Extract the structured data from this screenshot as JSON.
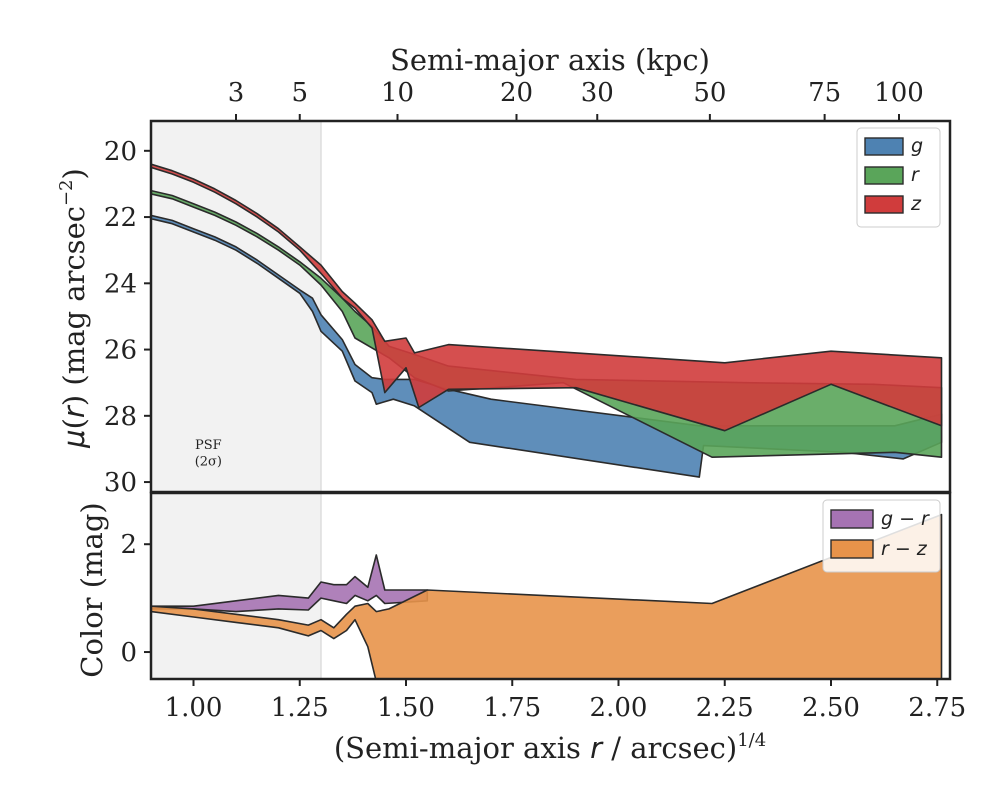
{
  "chart_data": [
    {
      "type": "area",
      "panel": "surface-brightness",
      "xlabel": "(Semi-major axis r / arcsec)1/4",
      "ylabel": "μ(r) (mag arcsec−2)",
      "top_axis_label": "Semi-major axis (kpc)",
      "top_axis_ticks": [
        {
          "kpc": 3,
          "x": 1.1
        },
        {
          "kpc": 5,
          "x": 1.25
        },
        {
          "kpc": 10,
          "x": 1.48
        },
        {
          "kpc": 20,
          "x": 1.76
        },
        {
          "kpc": 30,
          "x": 1.95
        },
        {
          "kpc": 50,
          "x": 2.215
        },
        {
          "kpc": 75,
          "x": 2.485
        },
        {
          "kpc": 100,
          "x": 2.66
        }
      ],
      "xlim": [
        0.9,
        2.78
      ],
      "ylim": [
        30.3,
        19.1
      ],
      "y_inverted": true,
      "xticks": [
        1.0,
        1.25,
        1.5,
        1.75,
        2.0,
        2.25,
        2.5,
        2.75
      ],
      "xtick_labels": [
        "1.00",
        "1.25",
        "1.50",
        "1.75",
        "2.00",
        "2.25",
        "2.50",
        "2.75"
      ],
      "yticks": [
        20,
        22,
        24,
        26,
        28,
        30
      ],
      "ytick_labels": [
        "20",
        "22",
        "24",
        "26",
        "28",
        "30"
      ],
      "legend_position": "top-right",
      "annotations": [
        {
          "text": "PSF",
          "text2": "(2σ)"
        }
      ],
      "psf_shade_xmax": 1.3,
      "series": [
        {
          "name": "g",
          "color": "#4e82b2",
          "upper": [
            [
              0.9,
              21.95
            ],
            [
              0.95,
              22.1
            ],
            [
              1.0,
              22.35
            ],
            [
              1.05,
              22.6
            ],
            [
              1.1,
              22.9
            ],
            [
              1.15,
              23.3
            ],
            [
              1.2,
              23.75
            ],
            [
              1.25,
              24.2
            ],
            [
              1.28,
              24.45
            ],
            [
              1.3,
              24.95
            ],
            [
              1.35,
              25.7
            ],
            [
              1.38,
              26.45
            ],
            [
              1.42,
              26.85
            ],
            [
              1.45,
              26.9
            ],
            [
              1.52,
              26.9
            ],
            [
              1.6,
              27.2
            ],
            [
              1.7,
              27.5
            ],
            [
              2.19,
              28.3
            ],
            [
              2.65,
              28.3
            ],
            [
              2.76,
              27.95
            ]
          ],
          "lower": [
            [
              0.9,
              22.05
            ],
            [
              0.95,
              22.2
            ],
            [
              1.0,
              22.45
            ],
            [
              1.05,
              22.7
            ],
            [
              1.1,
              23.0
            ],
            [
              1.15,
              23.4
            ],
            [
              1.2,
              23.85
            ],
            [
              1.25,
              24.3
            ],
            [
              1.28,
              24.85
            ],
            [
              1.3,
              25.45
            ],
            [
              1.35,
              26.05
            ],
            [
              1.38,
              26.95
            ],
            [
              1.42,
              27.3
            ],
            [
              1.43,
              27.65
            ],
            [
              1.47,
              27.5
            ],
            [
              1.52,
              27.7
            ],
            [
              1.65,
              28.8
            ],
            [
              2.19,
              29.85
            ],
            [
              2.2,
              28.9
            ],
            [
              2.53,
              29.1
            ],
            [
              2.67,
              29.3
            ],
            [
              2.76,
              28.8
            ]
          ]
        },
        {
          "name": "r",
          "color": "#5aa55a",
          "upper": [
            [
              0.9,
              21.2
            ],
            [
              0.95,
              21.35
            ],
            [
              1.0,
              21.6
            ],
            [
              1.05,
              21.85
            ],
            [
              1.1,
              22.15
            ],
            [
              1.15,
              22.5
            ],
            [
              1.2,
              22.9
            ],
            [
              1.25,
              23.35
            ],
            [
              1.3,
              23.85
            ],
            [
              1.35,
              24.45
            ],
            [
              1.38,
              24.85
            ],
            [
              1.42,
              25.3
            ],
            [
              1.46,
              25.9
            ],
            [
              1.52,
              26.15
            ],
            [
              1.6,
              26.5
            ],
            [
              1.9,
              26.9
            ],
            [
              2.3,
              27.0
            ],
            [
              2.6,
              27.05
            ],
            [
              2.76,
              27.15
            ]
          ],
          "lower": [
            [
              0.9,
              21.3
            ],
            [
              0.95,
              21.45
            ],
            [
              1.0,
              21.7
            ],
            [
              1.05,
              21.95
            ],
            [
              1.1,
              22.25
            ],
            [
              1.15,
              22.6
            ],
            [
              1.2,
              23.0
            ],
            [
              1.25,
              23.45
            ],
            [
              1.3,
              24.05
            ],
            [
              1.35,
              24.85
            ],
            [
              1.38,
              25.65
            ],
            [
              1.42,
              25.95
            ],
            [
              1.46,
              26.25
            ],
            [
              1.52,
              26.85
            ],
            [
              1.6,
              27.25
            ],
            [
              1.87,
              27.0
            ],
            [
              2.22,
              29.25
            ],
            [
              2.65,
              29.1
            ],
            [
              2.76,
              29.25
            ]
          ]
        },
        {
          "name": "z",
          "color": "#d03c3c",
          "upper": [
            [
              0.9,
              20.4
            ],
            [
              0.95,
              20.6
            ],
            [
              1.0,
              20.85
            ],
            [
              1.05,
              21.15
            ],
            [
              1.1,
              21.5
            ],
            [
              1.15,
              21.9
            ],
            [
              1.2,
              22.35
            ],
            [
              1.25,
              22.9
            ],
            [
              1.3,
              23.45
            ],
            [
              1.35,
              24.25
            ],
            [
              1.38,
              24.6
            ],
            [
              1.42,
              25.1
            ],
            [
              1.45,
              25.75
            ],
            [
              1.5,
              25.65
            ],
            [
              1.52,
              26.1
            ],
            [
              1.6,
              25.85
            ],
            [
              1.9,
              26.1
            ],
            [
              2.25,
              26.4
            ],
            [
              2.5,
              26.05
            ],
            [
              2.76,
              26.25
            ]
          ],
          "lower": [
            [
              0.9,
              20.5
            ],
            [
              0.95,
              20.7
            ],
            [
              1.0,
              20.95
            ],
            [
              1.05,
              21.25
            ],
            [
              1.1,
              21.6
            ],
            [
              1.15,
              22.0
            ],
            [
              1.2,
              22.45
            ],
            [
              1.25,
              23.0
            ],
            [
              1.3,
              23.7
            ],
            [
              1.35,
              24.45
            ],
            [
              1.38,
              24.75
            ],
            [
              1.42,
              25.35
            ],
            [
              1.45,
              27.3
            ],
            [
              1.5,
              26.55
            ],
            [
              1.53,
              27.75
            ],
            [
              1.6,
              27.2
            ],
            [
              1.9,
              27.15
            ],
            [
              2.25,
              28.45
            ],
            [
              2.5,
              27.05
            ],
            [
              2.76,
              28.3
            ]
          ]
        }
      ]
    },
    {
      "type": "area",
      "panel": "color",
      "xlabel": "(Semi-major axis r / arcsec)1/4",
      "ylabel": "Color (mag)",
      "xlim": [
        0.9,
        2.78
      ],
      "ylim": [
        -0.5,
        2.95
      ],
      "xticks": [
        1.0,
        1.25,
        1.5,
        1.75,
        2.0,
        2.25,
        2.5,
        2.75
      ],
      "xtick_labels": [
        "1.00",
        "1.25",
        "1.50",
        "1.75",
        "2.00",
        "2.25",
        "2.50",
        "2.75"
      ],
      "yticks": [
        0,
        2
      ],
      "ytick_labels": [
        "0",
        "2"
      ],
      "legend_position": "top-right",
      "series": [
        {
          "name": "g − r",
          "color": "#a673b3",
          "upper": [
            [
              0.9,
              0.85
            ],
            [
              1.0,
              0.85
            ],
            [
              1.1,
              0.95
            ],
            [
              1.2,
              1.05
            ],
            [
              1.27,
              1.0
            ],
            [
              1.3,
              1.3
            ],
            [
              1.33,
              1.25
            ],
            [
              1.36,
              1.25
            ],
            [
              1.38,
              1.4
            ],
            [
              1.41,
              1.2
            ],
            [
              1.43,
              1.8
            ],
            [
              1.45,
              1.15
            ],
            [
              1.55,
              1.15
            ]
          ],
          "lower": [
            [
              0.9,
              0.8
            ],
            [
              1.0,
              0.8
            ],
            [
              1.1,
              0.75
            ],
            [
              1.2,
              0.8
            ],
            [
              1.27,
              0.78
            ],
            [
              1.3,
              1.0
            ],
            [
              1.33,
              0.95
            ],
            [
              1.36,
              0.9
            ],
            [
              1.38,
              1.05
            ],
            [
              1.41,
              0.95
            ],
            [
              1.43,
              1.05
            ],
            [
              1.45,
              0.9
            ],
            [
              1.55,
              0.95
            ]
          ]
        },
        {
          "name": "r − z",
          "color": "#e8934a",
          "upper": [
            [
              0.9,
              0.85
            ],
            [
              1.0,
              0.8
            ],
            [
              1.1,
              0.7
            ],
            [
              1.2,
              0.6
            ],
            [
              1.27,
              0.5
            ],
            [
              1.3,
              0.6
            ],
            [
              1.33,
              0.45
            ],
            [
              1.36,
              0.7
            ],
            [
              1.38,
              0.85
            ],
            [
              1.41,
              0.9
            ],
            [
              1.43,
              0.75
            ],
            [
              1.46,
              0.8
            ],
            [
              1.55,
              1.15
            ],
            [
              2.22,
              0.9
            ],
            [
              2.76,
              2.55
            ]
          ],
          "lower": [
            [
              0.9,
              0.75
            ],
            [
              1.0,
              0.65
            ],
            [
              1.1,
              0.55
            ],
            [
              1.2,
              0.45
            ],
            [
              1.27,
              0.3
            ],
            [
              1.3,
              0.4
            ],
            [
              1.33,
              0.25
            ],
            [
              1.36,
              0.4
            ],
            [
              1.38,
              0.6
            ],
            [
              1.41,
              0.1
            ],
            [
              1.43,
              -0.55
            ],
            [
              1.55,
              -0.55
            ],
            [
              2.5,
              -0.55
            ],
            [
              2.76,
              -0.55
            ]
          ]
        }
      ]
    }
  ]
}
